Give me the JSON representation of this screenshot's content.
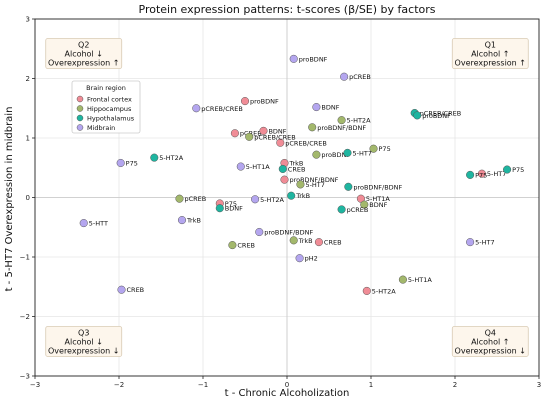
{
  "chart_data": {
    "type": "scatter",
    "title": "Protein expression patterns: t-scores (β/SE) by factors",
    "xlabel": "t - Chronic Alcoholization",
    "ylabel": "t - 5-HT7 Overexpression in midbrain",
    "xlim": [
      -3,
      3
    ],
    "ylim": [
      -3,
      3
    ],
    "xticks": [
      "−3",
      "−2",
      "−1",
      "0",
      "1",
      "2",
      "3"
    ],
    "yticks": [
      "−3",
      "−2",
      "−1",
      "0",
      "1",
      "2",
      "3"
    ],
    "grid": true,
    "legend": {
      "title": "Brain region",
      "placement": "upper-left",
      "entries": [
        "Frontal cortex",
        "Hippocampus",
        "Hypothalamus",
        "Midbrain"
      ]
    },
    "colors": {
      "Frontal cortex": "#f08c96",
      "Hippocampus": "#a3b86c",
      "Hypothalamus": "#1fb5a0",
      "Midbrain": "#b4a6ef"
    },
    "quadrants": [
      {
        "id": "Q2",
        "lines": [
          "Q2",
          "Alcohol ↓",
          "Overexpression ↑"
        ]
      },
      {
        "id": "Q1",
        "lines": [
          "Q1",
          "Alcohol ↑",
          "Overexpression ↑"
        ]
      },
      {
        "id": "Q3",
        "lines": [
          "Q3",
          "Alcohol ↓",
          "Overexpression ↓"
        ]
      },
      {
        "id": "Q4",
        "lines": [
          "Q4",
          "Alcohol ↑",
          "Overexpression ↓"
        ]
      }
    ],
    "series": [
      {
        "name": "Frontal cortex",
        "points": [
          {
            "label": "proBDNF",
            "x": -0.5,
            "y": 1.62
          },
          {
            "label": "pCREB",
            "x": -0.62,
            "y": 1.08
          },
          {
            "label": "BDNF",
            "x": -0.28,
            "y": 1.12
          },
          {
            "label": "pCREB/CREB",
            "x": -0.08,
            "y": 0.92
          },
          {
            "label": "TrkB",
            "x": -0.03,
            "y": 0.58
          },
          {
            "label": "proBDNF/BDNF",
            "x": -0.03,
            "y": 0.3
          },
          {
            "label": "P75",
            "x": -0.8,
            "y": -0.1
          },
          {
            "label": "5-HT1A",
            "x": 0.88,
            "y": -0.02
          },
          {
            "label": "CREB",
            "x": 0.38,
            "y": -0.75
          },
          {
            "label": "5-HT2A",
            "x": 0.95,
            "y": -1.57
          },
          {
            "label": "5-HT7",
            "x": 2.32,
            "y": 0.4
          }
        ]
      },
      {
        "name": "Hippocampus",
        "points": [
          {
            "label": "pCREB/CREB",
            "x": -0.45,
            "y": 1.02
          },
          {
            "label": "5-HT2A",
            "x": 0.65,
            "y": 1.3
          },
          {
            "label": "proBDNF/BDNF",
            "x": 0.3,
            "y": 1.18
          },
          {
            "label": "proBDNF",
            "x": 0.35,
            "y": 0.72
          },
          {
            "label": "P75",
            "x": 1.03,
            "y": 0.82
          },
          {
            "label": "5-HT7",
            "x": 0.16,
            "y": 0.22
          },
          {
            "label": "BDNF",
            "x": 0.92,
            "y": -0.12
          },
          {
            "label": "pCREB",
            "x": -1.28,
            "y": -0.02
          },
          {
            "label": "TrkB",
            "x": 0.08,
            "y": -0.72
          },
          {
            "label": "CREB",
            "x": -0.65,
            "y": -0.8
          },
          {
            "label": "5-HT1A",
            "x": 1.38,
            "y": -1.38
          }
        ]
      },
      {
        "name": "Hypothalamus",
        "points": [
          {
            "label": "pCREB/CREB",
            "x": 1.52,
            "y": 1.42
          },
          {
            "label": "proBDNF",
            "x": 1.55,
            "y": 1.38
          },
          {
            "label": "CREB",
            "x": -0.05,
            "y": 0.48
          },
          {
            "label": "5-HT7",
            "x": 0.72,
            "y": 0.75
          },
          {
            "label": "5-HT2A",
            "x": -1.58,
            "y": 0.67
          },
          {
            "label": "TrkB",
            "x": 0.05,
            "y": 0.03
          },
          {
            "label": "proBDNF/BDNF",
            "x": 0.73,
            "y": 0.18
          },
          {
            "label": "pCREB",
            "x": 0.65,
            "y": -0.2
          },
          {
            "label": "BDNF",
            "x": -0.8,
            "y": -0.18
          },
          {
            "label": "P75",
            "x": 2.62,
            "y": 0.47
          },
          {
            "label": "P75",
            "x": 2.18,
            "y": 0.38
          }
        ]
      },
      {
        "name": "Midbrain",
        "points": [
          {
            "label": "proBDNF",
            "x": 0.08,
            "y": 2.33
          },
          {
            "label": "pCREB",
            "x": 0.68,
            "y": 2.03
          },
          {
            "label": "BDNF",
            "x": 0.35,
            "y": 1.52
          },
          {
            "label": "pCREB/CREB",
            "x": -1.08,
            "y": 1.5
          },
          {
            "label": "5-HT1A",
            "x": -0.55,
            "y": 0.52
          },
          {
            "label": "P75",
            "x": -1.98,
            "y": 0.58
          },
          {
            "label": "5-HT2A",
            "x": -0.38,
            "y": -0.03
          },
          {
            "label": "TrkB",
            "x": -1.25,
            "y": -0.38
          },
          {
            "label": "proBDNF/BDNF",
            "x": -0.33,
            "y": -0.58
          },
          {
            "label": "5-HTT",
            "x": -2.42,
            "y": -0.43
          },
          {
            "label": "pH2",
            "x": 0.15,
            "y": -1.02
          },
          {
            "label": "5-HT7",
            "x": 2.18,
            "y": -0.75
          },
          {
            "label": "CREB",
            "x": -1.97,
            "y": -1.55
          }
        ]
      }
    ]
  }
}
